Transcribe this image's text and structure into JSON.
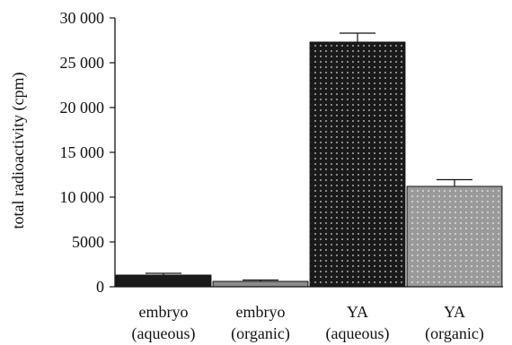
{
  "chart_data": {
    "type": "bar",
    "title": "",
    "xlabel": "",
    "ylabel": "total radioactivity (cpm)",
    "ylim": [
      0,
      30000
    ],
    "yticks": [
      0,
      5000,
      10000,
      15000,
      20000,
      25000,
      30000
    ],
    "ytick_labels": [
      "0",
      "5000",
      "10 000",
      "15 000",
      "20 000",
      "25 000",
      "30 000"
    ],
    "grid": false,
    "categories": [
      {
        "line1": "embryo",
        "line2": "(aqueous)"
      },
      {
        "line1": "embryo",
        "line2": "(organic)"
      },
      {
        "line1": "YA",
        "line2": "(aqueous)"
      },
      {
        "line1": "YA",
        "line2": "(organic)"
      }
    ],
    "values": [
      1300,
      600,
      27300,
      11200
    ],
    "errors": [
      200,
      150,
      1000,
      750
    ],
    "bar_styles": [
      {
        "fill": "#1a1a1a",
        "pattern": "none"
      },
      {
        "fill": "#8c8c8c",
        "pattern": "none"
      },
      {
        "fill": "#1a1a1a",
        "pattern": "dots-light"
      },
      {
        "fill": "#9a9a9a",
        "pattern": "dots-light"
      }
    ]
  }
}
